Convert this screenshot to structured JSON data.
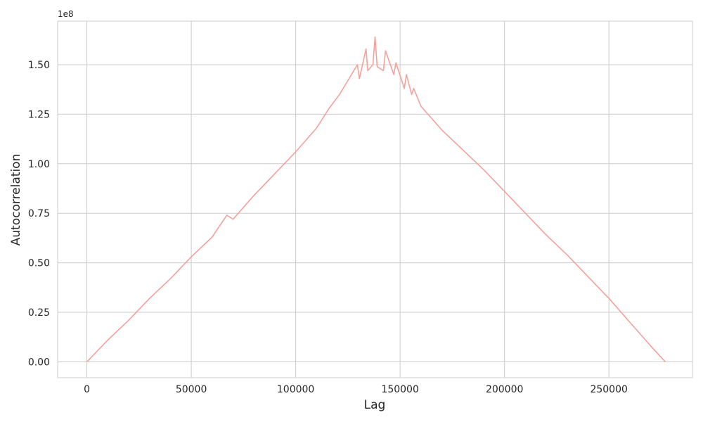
{
  "chart_data": {
    "type": "line",
    "title": "",
    "xlabel": "Lag",
    "ylabel": "Autocorrelation",
    "y_offset_label": "1e8",
    "xlim": [
      -14000,
      290000
    ],
    "ylim": [
      -0.08,
      1.72
    ],
    "x_ticks": [
      0,
      50000,
      100000,
      150000,
      200000,
      250000
    ],
    "x_tick_labels": [
      "0",
      "50000",
      "100000",
      "150000",
      "200000",
      "250000"
    ],
    "y_ticks": [
      0.0,
      0.25,
      0.5,
      0.75,
      1.0,
      1.25,
      1.5
    ],
    "y_tick_labels": [
      "0.00",
      "0.25",
      "0.50",
      "0.75",
      "1.00",
      "1.25",
      "1.50"
    ],
    "grid": true,
    "line_color": "#f4a19c",
    "series": [
      {
        "name": "autocorrelation",
        "x": [
          0,
          10000,
          20000,
          30000,
          40000,
          50000,
          60000,
          67000,
          70000,
          80000,
          90000,
          100000,
          110000,
          116000,
          121000,
          125000,
          129500,
          130500,
          133700,
          134500,
          137000,
          138000,
          139000,
          142000,
          143000,
          147000,
          148000,
          152000,
          153000,
          155500,
          156500,
          160000,
          170000,
          180000,
          190000,
          200000,
          210000,
          220000,
          230000,
          240000,
          250000,
          260000,
          270000,
          277000
        ],
        "y": [
          0.0,
          0.11,
          0.21,
          0.32,
          0.42,
          0.53,
          0.63,
          0.74,
          0.72,
          0.84,
          0.95,
          1.06,
          1.18,
          1.28,
          1.35,
          1.42,
          1.5,
          1.43,
          1.58,
          1.47,
          1.5,
          1.64,
          1.49,
          1.47,
          1.57,
          1.45,
          1.51,
          1.38,
          1.45,
          1.35,
          1.38,
          1.29,
          1.17,
          1.07,
          0.97,
          0.86,
          0.75,
          0.64,
          0.54,
          0.43,
          0.32,
          0.2,
          0.08,
          0.0
        ]
      }
    ]
  }
}
